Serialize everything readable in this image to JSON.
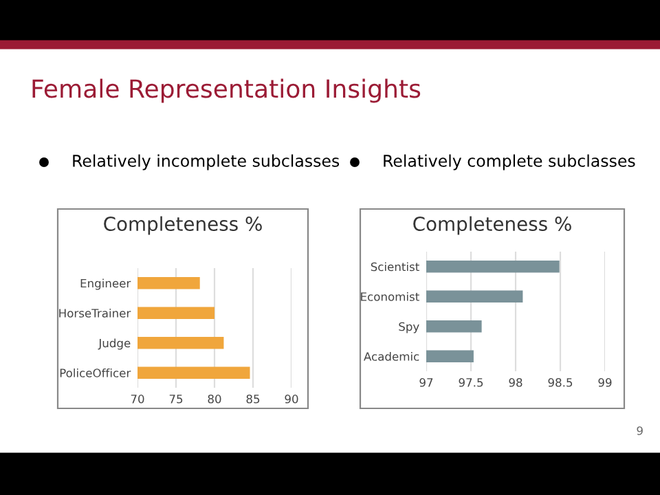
{
  "chart_data": [
    {
      "type": "bar",
      "orientation": "horizontal",
      "title": "Completeness %",
      "subtitle": "Relatively incomplete subclasses",
      "annotations": [
        "Female Representation Insights"
      ],
      "categories": [
        "Engineer",
        "HorseTrainer",
        "Judge",
        "PoliceOfficer"
      ],
      "values": [
        78.1,
        80.0,
        81.2,
        84.6
      ],
      "color": "#f0a63c",
      "xlim": [
        70,
        90
      ],
      "xticks": [
        70,
        75,
        80,
        85,
        90
      ],
      "grid": "x"
    },
    {
      "type": "bar",
      "orientation": "horizontal",
      "title": "Completeness %",
      "subtitle": "Relatively complete subclasses",
      "annotations": [
        "9"
      ],
      "categories": [
        "Scientist",
        "Economist",
        "Spy",
        "Academic"
      ],
      "values": [
        98.49,
        98.08,
        97.62,
        97.53
      ],
      "color": "#7a9299",
      "xlim": [
        97,
        99
      ],
      "xticks": [
        97,
        {
          "value": 97.5,
          "label": "97.5"
        },
        98,
        {
          "value": 98.5,
          "label": "98.5"
        },
        99
      ],
      "grid": "x"
    }
  ]
}
